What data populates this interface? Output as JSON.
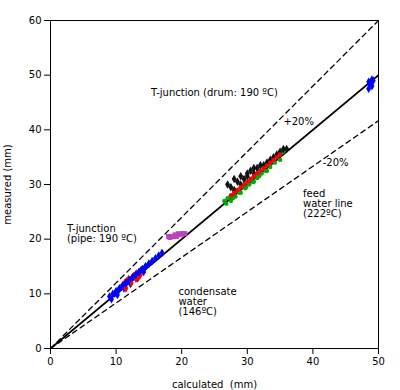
{
  "chart_data": {
    "type": "scatter",
    "xlabel": "calculated  (mm)",
    "ylabel": "measured (mm)",
    "xlim": [
      0,
      50
    ],
    "ylim": [
      0,
      60
    ],
    "xticks": [
      0,
      10,
      20,
      30,
      40,
      50
    ],
    "yticks": [
      0,
      10,
      20,
      30,
      40,
      50,
      60
    ],
    "grid": false,
    "annotations": [
      {
        "text": "T-junction (drum: 190 ºC)",
        "x": 25,
        "y": 47.5
      },
      {
        "text": "+20%",
        "x": 35.5,
        "y": 41.5
      },
      {
        "text": "-20%",
        "x": 41.5,
        "y": 34.0
      },
      {
        "text": "feed\nwater line\n(222ºC)",
        "x": 38.5,
        "y": 26.5
      },
      {
        "text": "T-junction\n(pipe: 190 ºC)",
        "x": 2.5,
        "y": 21
      },
      {
        "text": "condensate\nwater\n(146ºC)",
        "x": 19.5,
        "y": 8.5
      }
    ],
    "series": [
      {
        "type": "line",
        "line_style": "solid",
        "color": "#000000",
        "x": [
          0,
          50
        ],
        "values": [
          0,
          50
        ]
      },
      {
        "type": "line",
        "line_style": "dashed",
        "color": "#000000",
        "x": [
          0,
          50
        ],
        "values": [
          0,
          60
        ]
      },
      {
        "type": "line",
        "line_style": "dashed",
        "color": "#000000",
        "x": [
          0,
          50
        ],
        "values": [
          0,
          41.666666666666664
        ]
      },
      {
        "color": "#0000ff",
        "marker": "diamond",
        "x": [
          9.0,
          9.5,
          10.0,
          10.5,
          11.0,
          11.5,
          12.0,
          12.5,
          13.0,
          13.5,
          14.0,
          14.5,
          15.0,
          9.3,
          10.2,
          11.2,
          12.2,
          13.2,
          14.2,
          10.8,
          11.8,
          12.8,
          13.8,
          9.8,
          10.5,
          11.5
        ],
        "values": [
          9.5,
          10.0,
          10.5,
          11.0,
          11.5,
          12.0,
          12.5,
          13.0,
          13.5,
          14.0,
          14.5,
          15.0,
          15.5,
          9.0,
          9.8,
          11.0,
          11.8,
          12.8,
          14.0,
          11.2,
          12.3,
          13.2,
          14.3,
          10.0,
          10.8,
          12.0
        ]
      },
      {
        "color": "#ff0000",
        "marker": "diamond",
        "x": [
          11.0,
          11.3,
          11.6,
          11.9,
          12.2,
          12.5,
          12.8,
          13.1,
          13.4,
          13.7,
          11.5,
          12.0,
          12.3,
          12.7,
          13.0,
          13.3
        ],
        "values": [
          11.5,
          12.0,
          12.3,
          12.7,
          12.5,
          13.0,
          13.3,
          13.7,
          13.0,
          13.5,
          11.0,
          12.5,
          12.0,
          13.3,
          12.8,
          13.5
        ]
      },
      {
        "color": "#0000ff",
        "marker": "diamond",
        "x": [
          11.0,
          11.5,
          12.0,
          12.5,
          13.0,
          13.5,
          14.0,
          14.5,
          15.0,
          15.5,
          16.0,
          16.5,
          17.0,
          11.5,
          12.5,
          13.5,
          14.5
        ],
        "values": [
          11.5,
          12.0,
          12.5,
          13.0,
          13.5,
          14.0,
          14.5,
          15.0,
          15.5,
          16.0,
          16.5,
          17.0,
          17.5,
          12.0,
          13.0,
          14.0,
          15.0
        ]
      },
      {
        "color": "#bb44bb",
        "marker": "square",
        "x": [
          18.0,
          18.5,
          19.0,
          19.5,
          20.0,
          20.5,
          18.2,
          18.7,
          19.2,
          19.7,
          20.2
        ],
        "values": [
          20.5,
          20.5,
          20.8,
          21.0,
          21.0,
          21.0,
          20.3,
          20.5,
          20.5,
          20.8,
          21.0
        ]
      },
      {
        "color": "#00aa00",
        "marker": "dot",
        "x": [
          26.5,
          27.0,
          27.5,
          28.0,
          28.5,
          29.0,
          29.5,
          30.0,
          30.5,
          31.0,
          31.5,
          32.0,
          32.5,
          33.0,
          33.5,
          34.0,
          34.5,
          35.0,
          35.5,
          27.5,
          28.2,
          29.0,
          29.7,
          30.3,
          31.0,
          31.5,
          32.2,
          33.0,
          33.5,
          34.2,
          35.0,
          26.8,
          27.8,
          28.8,
          29.8,
          30.8,
          31.8,
          32.8
        ],
        "values": [
          27.0,
          27.5,
          28.0,
          28.5,
          29.0,
          29.5,
          30.0,
          30.5,
          31.0,
          31.5,
          32.0,
          32.5,
          33.0,
          33.5,
          34.0,
          34.5,
          35.0,
          35.5,
          36.0,
          27.0,
          27.8,
          28.5,
          29.3,
          30.0,
          30.5,
          31.2,
          32.0,
          32.5,
          33.2,
          34.0,
          34.5,
          26.5,
          27.5,
          28.5,
          29.5,
          30.5,
          31.5,
          32.5
        ]
      },
      {
        "color": "#111111",
        "marker": "diamond",
        "x": [
          27.0,
          28.0,
          29.0,
          30.0,
          31.0,
          32.0,
          33.0,
          34.0,
          35.0,
          36.0,
          27.5,
          28.5,
          29.5,
          30.5,
          31.5,
          32.5,
          33.5,
          34.5,
          35.5,
          28.0,
          29.0,
          30.0,
          31.0
        ],
        "values": [
          30.0,
          31.0,
          31.5,
          32.0,
          33.0,
          33.5,
          34.0,
          35.0,
          36.0,
          36.5,
          29.5,
          30.5,
          31.0,
          32.5,
          33.0,
          33.5,
          34.5,
          35.5,
          36.5,
          29.0,
          30.0,
          31.5,
          32.0
        ]
      },
      {
        "color": "#ff0000",
        "marker": "dot",
        "x": [
          27.5,
          28.5,
          29.5,
          30.5,
          31.5,
          32.5,
          33.5,
          34.5,
          28.0,
          29.0,
          30.0,
          31.0,
          32.0,
          33.0,
          34.0,
          35.0
        ],
        "values": [
          28.0,
          29.0,
          30.0,
          31.0,
          32.0,
          33.0,
          34.0,
          35.0,
          28.5,
          29.5,
          30.5,
          31.5,
          32.5,
          33.5,
          34.5,
          35.5
        ]
      },
      {
        "color": "#0000ff",
        "marker": "diamond",
        "x": [
          48.5,
          49.0,
          48.7,
          49.2,
          48.5,
          49.0
        ],
        "values": [
          47.5,
          48.0,
          48.5,
          49.0,
          48.8,
          49.2
        ]
      }
    ]
  }
}
